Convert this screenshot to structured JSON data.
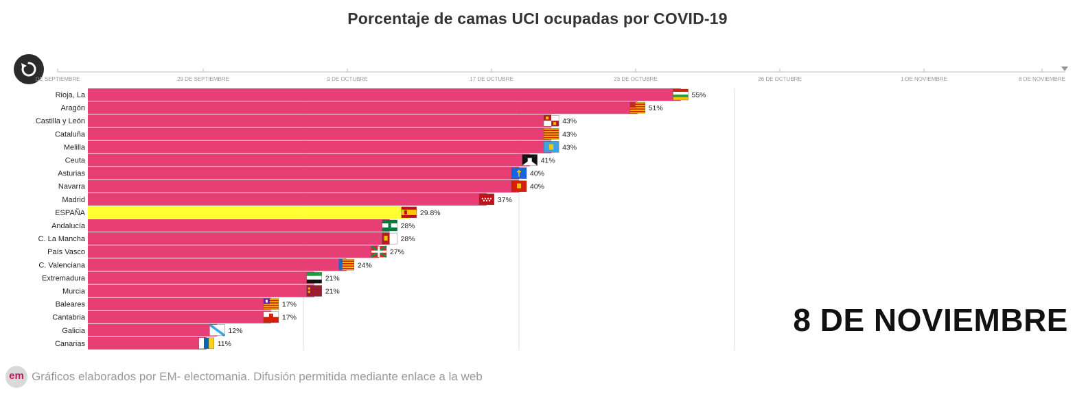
{
  "header": {
    "title": "Porcentaje de camas UCI ocupadas por COVID-19"
  },
  "current_date": "8 DE NOVIEMBRE",
  "footer": {
    "logo": "em",
    "text": "Gráficos elaborados por EM- electomania. Difusión permitida mediante enlace a la web"
  },
  "replay_icon": "replay-icon",
  "colors": {
    "bar": "#e83e76",
    "highlight": "#ffff33",
    "grid": "#dddddd"
  },
  "timeline": {
    "ticks": [
      "DE SEPTIEMBRE",
      "29 DE SEPTIEMBRE",
      "9 DE OCTUBRE",
      "17 DE OCTUBRE",
      "23 DE OCTUBRE",
      "26 DE OCTUBRE",
      "1 DE NOVIEMBRE",
      "8 DE NOVIEMBRE"
    ]
  },
  "chart_data": {
    "type": "bar",
    "orientation": "horizontal",
    "title": "Porcentaje de camas UCI ocupadas por COVID-19",
    "unit": "%",
    "xlim": [
      0,
      60
    ],
    "grid": true,
    "categories": [
      "Rioja, La",
      "Aragón",
      "Castilla y León",
      "Cataluña",
      "Melilla",
      "Ceuta",
      "Asturias",
      "Navarra",
      "Madrid",
      "ESPAÑA",
      "Andalucía",
      "C. La Mancha",
      "País Vasco",
      "C. Valenciana",
      "Extremadura",
      "Murcia",
      "Baleares",
      "Cantabria",
      "Galicia",
      "Canarias"
    ],
    "values": [
      55,
      51,
      43,
      43,
      43,
      41,
      40,
      40,
      37,
      29.8,
      28,
      28,
      27,
      24,
      21,
      21,
      17,
      17,
      12,
      11
    ],
    "value_labels": [
      "55%",
      "51%",
      "43%",
      "43%",
      "43%",
      "41%",
      "40%",
      "40%",
      "37%",
      "29.8%",
      "28%",
      "28%",
      "27%",
      "24%",
      "21%",
      "21%",
      "17%",
      "17%",
      "12%",
      "11%"
    ],
    "highlight": "ESPAÑA",
    "flags": [
      "rioja",
      "aragon",
      "castilla-leon",
      "cataluna",
      "melilla",
      "ceuta",
      "asturias",
      "navarra",
      "madrid",
      "espana",
      "andalucia",
      "castilla-la-mancha",
      "pais-vasco",
      "valencia",
      "extremadura",
      "murcia",
      "baleares",
      "cantabria",
      "galicia",
      "canarias"
    ]
  }
}
